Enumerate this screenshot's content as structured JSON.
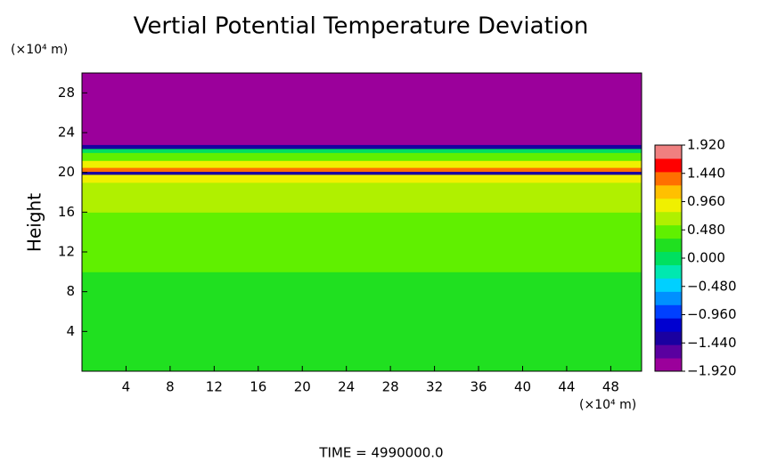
{
  "chart_data": {
    "type": "heatmap",
    "title": "Vertial Potential Temperature Deviation",
    "y_label": "Height",
    "y_unit": "(×10⁴ m)",
    "x_unit": "(×10⁴ m)",
    "footer": "TIME = 4990000.0",
    "xlim": [
      0,
      50.8
    ],
    "ylim": [
      0,
      30
    ],
    "xticks": [
      4,
      8,
      12,
      16,
      20,
      24,
      28,
      32,
      36,
      40,
      44,
      48
    ],
    "yticks": [
      4,
      8,
      12,
      16,
      20,
      24,
      28
    ],
    "y": [
      0,
      10,
      16,
      19,
      19.8,
      20.1,
      20.5,
      21.2,
      22,
      22.4,
      22.8,
      30
    ],
    "values": [
      0.2,
      0.35,
      0.6,
      0.9,
      -1.4,
      1.3,
      1.0,
      0.5,
      0.0,
      -1.4,
      -1.92
    ],
    "clim": [
      -1.92,
      1.92
    ],
    "colormap": [
      "#9b009b",
      "#5a00a0",
      "#1a00a0",
      "#0000d0",
      "#0040ff",
      "#0090ff",
      "#00d0ff",
      "#00e8b0",
      "#00e060",
      "#20e020",
      "#60f000",
      "#b0f000",
      "#f0f000",
      "#ffc000",
      "#ff7000",
      "#ff0000",
      "#f08080"
    ],
    "colorbar_ticks": [
      {
        "value": 1.92,
        "label": "1.920"
      },
      {
        "value": 1.44,
        "label": "1.440"
      },
      {
        "value": 0.96,
        "label": "0.960"
      },
      {
        "value": 0.48,
        "label": "0.480"
      },
      {
        "value": 0,
        "label": "0.000"
      },
      {
        "value": -0.48,
        "label": "−0.480"
      },
      {
        "value": -0.96,
        "label": "−0.960"
      },
      {
        "value": -1.44,
        "label": "−1.440"
      },
      {
        "value": -1.92,
        "label": "−1.920"
      }
    ]
  }
}
